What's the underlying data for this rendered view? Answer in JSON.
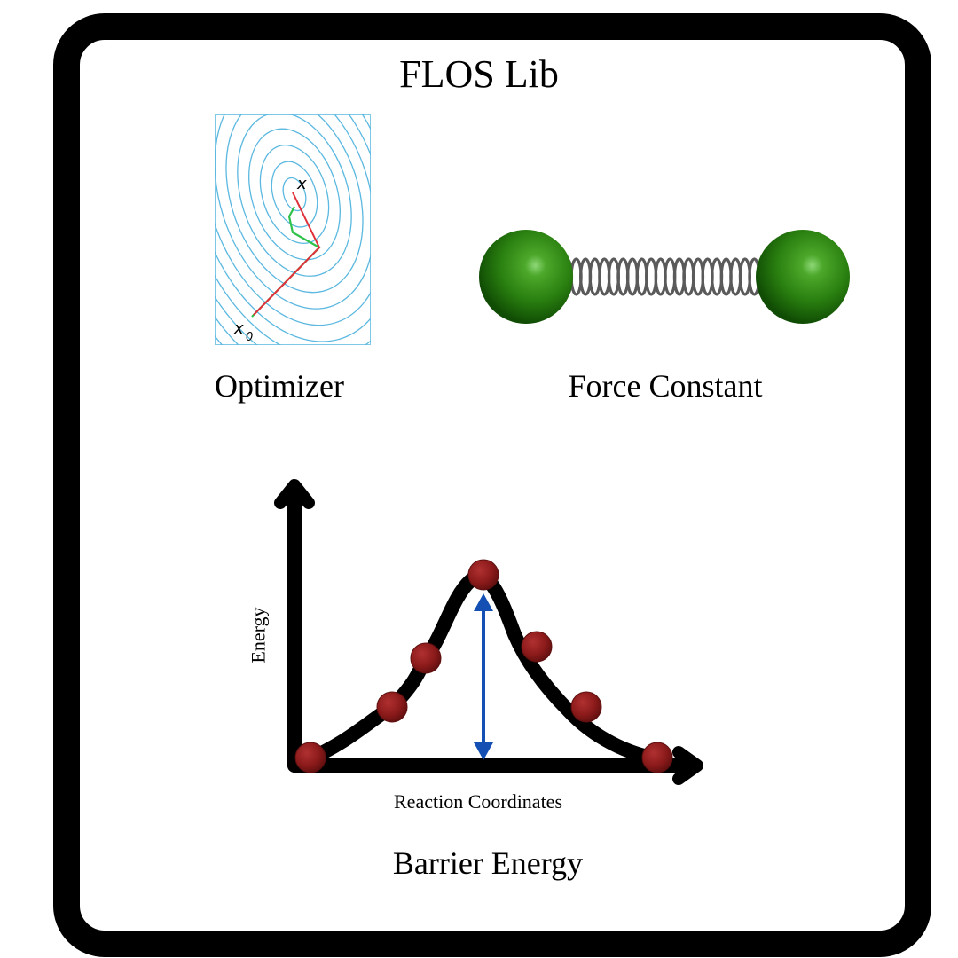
{
  "title": "FLOS Lib",
  "panels": {
    "optimizer": {
      "label": "Optimizer",
      "start_symbol": "x",
      "start_subscript": "0",
      "end_symbol": "x"
    },
    "force_constant": {
      "label": "Force Constant"
    },
    "barrier_energy": {
      "label": "Barrier Energy",
      "y_axis_label": "Energy",
      "x_axis_label": "Reaction Coordinates"
    }
  },
  "colors": {
    "frame": "#000000",
    "contour": "#5bb8e0",
    "path_green": "#2fc24a",
    "path_red": "#e0303a",
    "atom": "#2f8a10",
    "spring": "#555555",
    "bead": "#8b1a1a",
    "barrier_arrow": "#1450b4"
  },
  "icons": [
    "contour-plot-icon",
    "spring-molecule-icon",
    "energy-profile-icon"
  ]
}
